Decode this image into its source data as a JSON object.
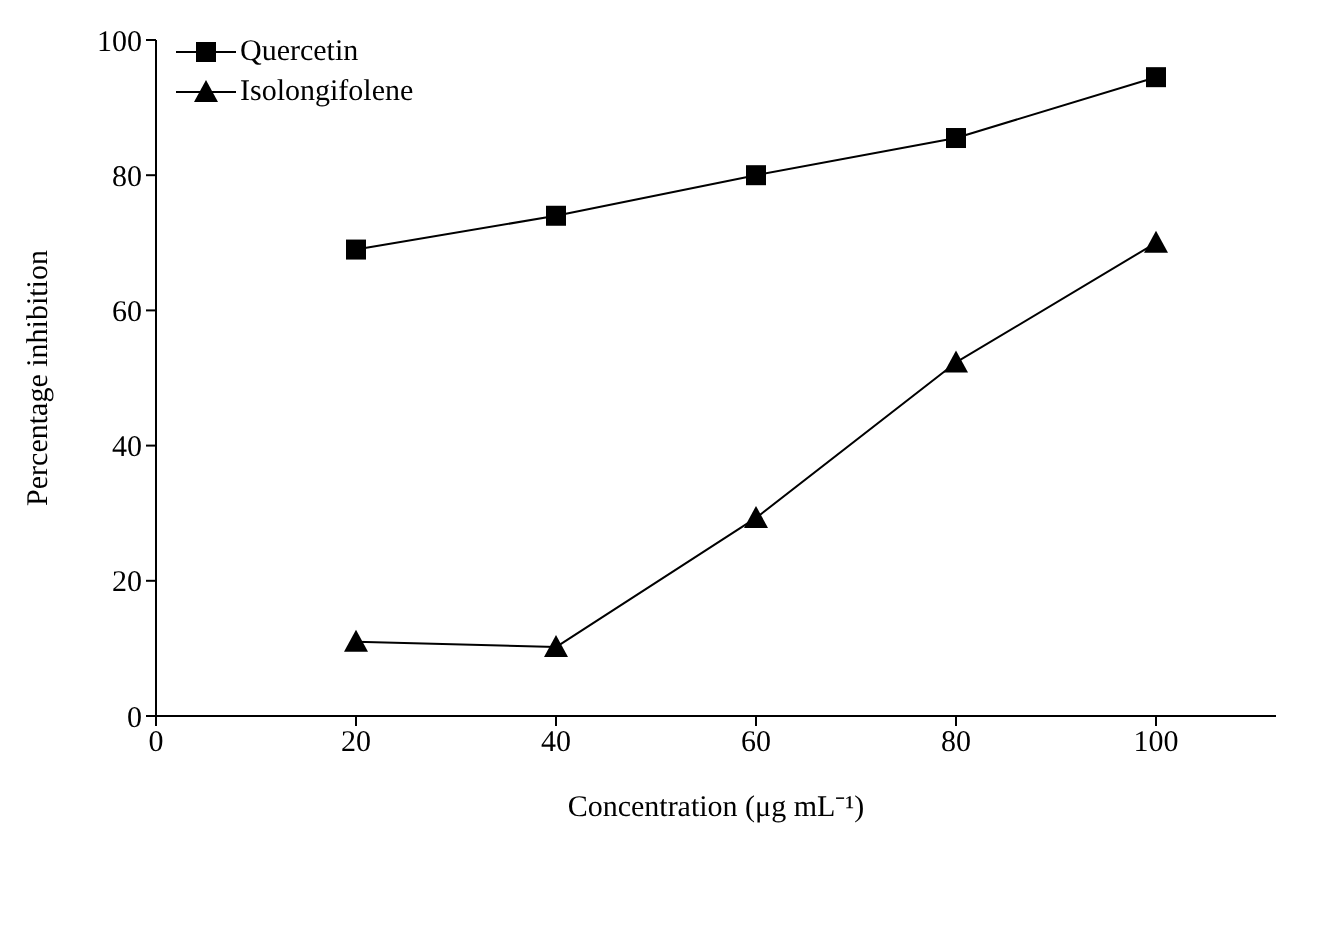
{
  "chart_data": {
    "type": "line",
    "xlabel": "Concentration (μg mL⁻¹)",
    "ylabel": "Percentage inhibition",
    "x": [
      20,
      40,
      60,
      80,
      100
    ],
    "series": [
      {
        "name": "Quercetin",
        "color": "#000000",
        "marker": "square",
        "values": [
          69,
          74,
          80,
          85.5,
          94.5
        ]
      },
      {
        "name": "Isolongifolene",
        "color": "#000000",
        "marker": "triangle",
        "values": [
          11,
          10.2,
          29.3,
          52.3,
          70
        ]
      }
    ],
    "xlim": [
      0,
      112
    ],
    "xticks": [
      0,
      20,
      40,
      60,
      80,
      100
    ],
    "ylim": [
      0,
      100
    ],
    "yticks": [
      0,
      20,
      40,
      60,
      80,
      100
    ],
    "grid": false,
    "legend": "top left",
    "line_style": "solid"
  }
}
